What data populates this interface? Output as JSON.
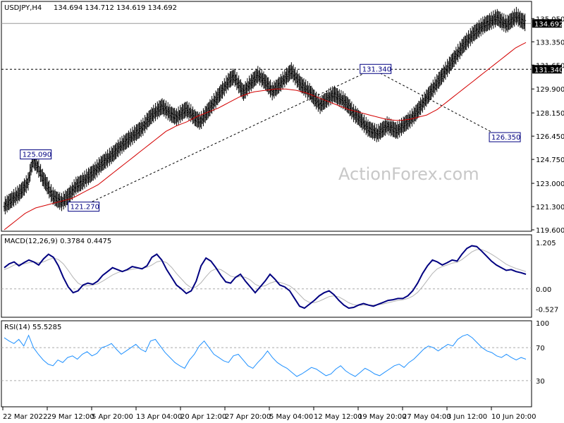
{
  "chart_data": [
    {
      "type": "candlestick",
      "title": "USDJPY,H4",
      "ohlc_label": "134.694 134.712 134.619 134.692",
      "watermark": "ActionForex.com",
      "ylim": [
        119.6,
        136.2
      ],
      "y_ticks": [
        "135.050",
        "133.350",
        "131.650",
        "129.900",
        "128.150",
        "126.450",
        "124.750",
        "123.000",
        "121.300",
        "119.600"
      ],
      "y_tick_values": [
        135.05,
        133.35,
        131.65,
        129.9,
        128.15,
        126.45,
        124.75,
        123.0,
        121.3,
        119.6
      ],
      "current_price": {
        "label": "134.692",
        "value": 134.692
      },
      "level_line": {
        "label": "131.340",
        "value": 131.34
      },
      "annotations": [
        {
          "label": "125.090",
          "value": 125.09,
          "x_index": 6
        },
        {
          "label": "121.270",
          "value": 121.27,
          "x_index": 16
        },
        {
          "label": "131.340",
          "value": 131.34,
          "x_index": 77
        },
        {
          "label": "126.350",
          "value": 126.35,
          "x_index": 104
        }
      ],
      "close_series": [
        121.3,
        121.6,
        121.9,
        122.2,
        122.6,
        123.1,
        124.7,
        124.2,
        123.4,
        122.8,
        122.1,
        121.8,
        121.6,
        121.9,
        122.3,
        122.8,
        123.0,
        123.3,
        123.6,
        123.9,
        124.3,
        124.6,
        124.9,
        125.2,
        125.6,
        125.9,
        126.2,
        126.5,
        126.8,
        127.1,
        127.6,
        128.0,
        128.3,
        128.6,
        128.3,
        128.0,
        127.8,
        128.1,
        128.4,
        128.1,
        127.7,
        127.5,
        128.0,
        128.5,
        129.0,
        129.5,
        130.0,
        130.5,
        130.8,
        130.2,
        129.6,
        130.1,
        130.5,
        130.9,
        130.6,
        130.2,
        129.7,
        130.0,
        130.4,
        130.8,
        131.2,
        130.7,
        130.2,
        129.9,
        129.6,
        129.1,
        128.7,
        129.0,
        129.3,
        129.5,
        129.2,
        129.0,
        128.6,
        128.1,
        127.8,
        127.4,
        127.0,
        126.8,
        126.6,
        126.9,
        127.2,
        127.0,
        126.8,
        127.1,
        127.4,
        127.7,
        128.1,
        128.6,
        129.1,
        129.6,
        130.1,
        130.6,
        131.1,
        131.6,
        132.1,
        132.6,
        133.1,
        133.5,
        133.9,
        134.2,
        134.5,
        134.7,
        134.9,
        135.1,
        134.8,
        134.6,
        134.9,
        135.2,
        134.9,
        134.7
      ],
      "ma_series": [
        119.6,
        119.9,
        120.2,
        120.5,
        120.8,
        121.0,
        121.2,
        121.3,
        121.4,
        121.5,
        121.6,
        121.7,
        121.8,
        121.9,
        122.1,
        122.3,
        122.5,
        122.7,
        122.9,
        123.2,
        123.5,
        123.8,
        124.1,
        124.4,
        124.7,
        125.0,
        125.3,
        125.6,
        125.9,
        126.2,
        126.5,
        126.8,
        127.0,
        127.2,
        127.35,
        127.5,
        127.7,
        127.9,
        128.05,
        128.2,
        128.35,
        128.5,
        128.7,
        128.9,
        129.1,
        129.3,
        129.45,
        129.6,
        129.7,
        129.75,
        129.8,
        129.85,
        129.9,
        129.9,
        129.9,
        129.85,
        129.8,
        129.7,
        129.6,
        129.45,
        129.3,
        129.15,
        129.0,
        128.85,
        128.7,
        128.55,
        128.4,
        128.3,
        128.2,
        128.1,
        128.0,
        127.9,
        127.8,
        127.7,
        127.65,
        127.6,
        127.6,
        127.65,
        127.7,
        127.8,
        127.9,
        128.0,
        128.2,
        128.4,
        128.7,
        129.0,
        129.3,
        129.6,
        129.9,
        130.2,
        130.5,
        130.8,
        131.1,
        131.4,
        131.7,
        132.0,
        132.3,
        132.6,
        132.9,
        133.1,
        133.3
      ],
      "x_labels": [
        "22 Mar 2022",
        "29 Mar 12:00",
        "5 Apr 20:00",
        "13 Apr 04:00",
        "20 Apr 12:00",
        "27 Apr 20:00",
        "5 May 04:00",
        "12 May 12:00",
        "19 May 20:00",
        "27 May 04:00",
        "3 Jun 12:00",
        "10 Jun 20:00"
      ]
    },
    {
      "type": "line",
      "title": "MACD(12,26,9) 0.3784 0.4475",
      "ylim": [
        -0.7,
        1.35
      ],
      "y_ticks": [
        "1.205",
        "0.00",
        "-0.527"
      ],
      "y_tick_values": [
        1.205,
        0.0,
        -0.527
      ],
      "macd_series": [
        0.55,
        0.65,
        0.7,
        0.6,
        0.68,
        0.75,
        0.7,
        0.62,
        0.78,
        0.9,
        0.82,
        0.6,
        0.3,
        0.05,
        -0.1,
        -0.05,
        0.1,
        0.15,
        0.12,
        0.2,
        0.35,
        0.45,
        0.55,
        0.5,
        0.45,
        0.5,
        0.58,
        0.55,
        0.52,
        0.6,
        0.82,
        0.9,
        0.75,
        0.5,
        0.3,
        0.1,
        0.0,
        -0.12,
        -0.05,
        0.2,
        0.6,
        0.8,
        0.72,
        0.55,
        0.35,
        0.18,
        0.15,
        0.3,
        0.38,
        0.2,
        0.05,
        -0.1,
        0.05,
        0.2,
        0.38,
        0.25,
        0.1,
        0.05,
        -0.05,
        -0.25,
        -0.45,
        -0.5,
        -0.4,
        -0.3,
        -0.18,
        -0.1,
        -0.05,
        -0.15,
        -0.3,
        -0.42,
        -0.5,
        -0.48,
        -0.42,
        -0.38,
        -0.42,
        -0.45,
        -0.4,
        -0.35,
        -0.3,
        -0.28,
        -0.25,
        -0.25,
        -0.18,
        -0.05,
        0.15,
        0.4,
        0.6,
        0.75,
        0.7,
        0.62,
        0.68,
        0.75,
        0.72,
        0.9,
        1.05,
        1.12,
        1.1,
        0.98,
        0.85,
        0.72,
        0.62,
        0.55,
        0.48,
        0.5,
        0.45,
        0.42,
        0.38
      ],
      "signal_series": [
        0.5,
        0.55,
        0.62,
        0.64,
        0.65,
        0.68,
        0.7,
        0.68,
        0.7,
        0.76,
        0.8,
        0.76,
        0.65,
        0.48,
        0.3,
        0.15,
        0.08,
        0.08,
        0.1,
        0.13,
        0.2,
        0.28,
        0.36,
        0.42,
        0.46,
        0.48,
        0.51,
        0.53,
        0.54,
        0.56,
        0.62,
        0.7,
        0.73,
        0.68,
        0.56,
        0.4,
        0.26,
        0.12,
        0.03,
        0.05,
        0.16,
        0.32,
        0.46,
        0.52,
        0.5,
        0.42,
        0.33,
        0.3,
        0.32,
        0.3,
        0.23,
        0.12,
        0.06,
        0.08,
        0.15,
        0.19,
        0.17,
        0.13,
        0.08,
        -0.02,
        -0.15,
        -0.28,
        -0.35,
        -0.36,
        -0.32,
        -0.26,
        -0.2,
        -0.18,
        -0.21,
        -0.28,
        -0.36,
        -0.41,
        -0.43,
        -0.42,
        -0.42,
        -0.42,
        -0.41,
        -0.39,
        -0.36,
        -0.33,
        -0.3,
        -0.28,
        -0.25,
        -0.19,
        -0.09,
        0.06,
        0.23,
        0.4,
        0.52,
        0.58,
        0.62,
        0.67,
        0.69,
        0.76,
        0.86,
        0.96,
        1.02,
        1.02,
        0.97,
        0.9,
        0.82,
        0.73,
        0.64,
        0.58,
        0.53,
        0.49,
        0.45
      ]
    },
    {
      "type": "line",
      "title": "RSI(14) 55.5285",
      "ylim": [
        0,
        100
      ],
      "y_ticks": [
        "100",
        "70",
        "30"
      ],
      "y_tick_values": [
        100,
        70,
        30
      ],
      "rsi_series": [
        82,
        78,
        75,
        80,
        72,
        85,
        70,
        62,
        55,
        50,
        48,
        55,
        52,
        58,
        60,
        56,
        62,
        65,
        60,
        63,
        70,
        72,
        75,
        68,
        62,
        66,
        70,
        74,
        68,
        65,
        78,
        80,
        72,
        64,
        58,
        52,
        48,
        45,
        55,
        62,
        72,
        78,
        70,
        62,
        58,
        54,
        52,
        60,
        62,
        55,
        48,
        45,
        52,
        58,
        66,
        58,
        52,
        48,
        45,
        40,
        35,
        38,
        42,
        46,
        44,
        40,
        36,
        38,
        44,
        48,
        42,
        38,
        35,
        40,
        45,
        42,
        38,
        36,
        40,
        44,
        48,
        50,
        46,
        52,
        56,
        62,
        68,
        72,
        70,
        66,
        70,
        74,
        72,
        80,
        84,
        86,
        82,
        76,
        70,
        66,
        64,
        60,
        58,
        62,
        58,
        55,
        58,
        56
      ]
    }
  ]
}
